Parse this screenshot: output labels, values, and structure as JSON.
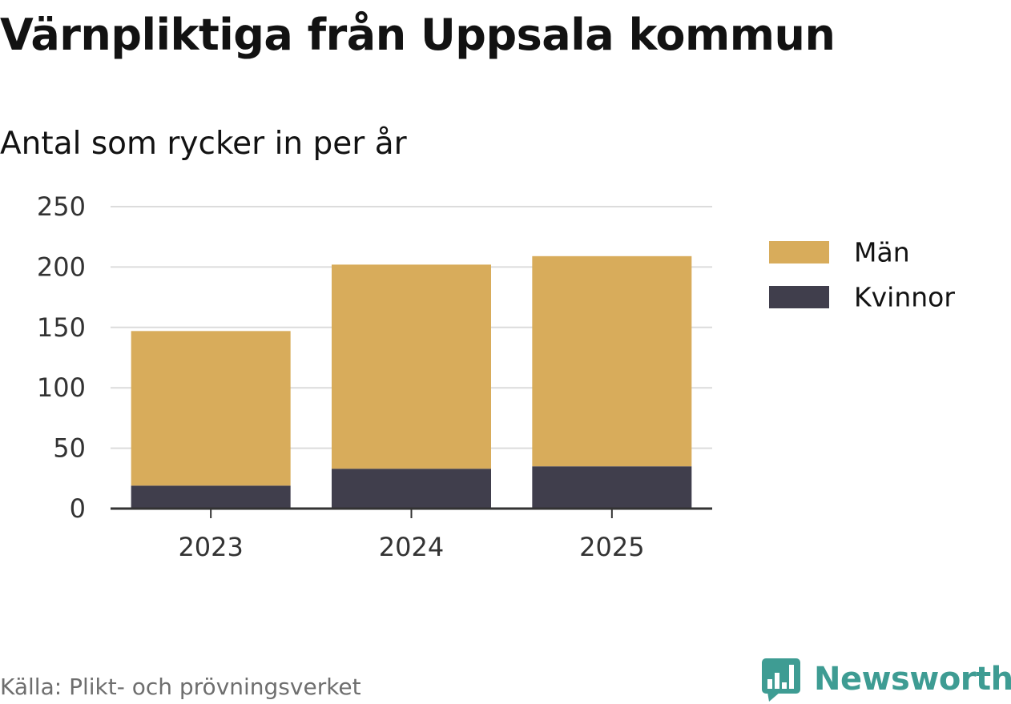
{
  "title": "Värnpliktiga från Uppsala kommun",
  "subtitle": "Antal som rycker in per år",
  "source": "Källa: Plikt- och prövningsverket",
  "brand": {
    "name": "Newsworthy",
    "color": "#3e9c93",
    "icon": "bar-chart-speech-bubble-icon"
  },
  "chart_data": {
    "type": "bar",
    "stacked": true,
    "categories": [
      "2023",
      "2024",
      "2025"
    ],
    "series": [
      {
        "name": "Kvinnor",
        "color": "#403e4c",
        "values": [
          19,
          33,
          35
        ]
      },
      {
        "name": "Män",
        "color": "#d8ac5b",
        "values": [
          128,
          169,
          174
        ]
      }
    ],
    "legend_order": [
      "Män",
      "Kvinnor"
    ],
    "ylim": [
      0,
      250
    ],
    "yticks": [
      0,
      50,
      100,
      150,
      200,
      250
    ],
    "grid": true,
    "legend_position": "right"
  }
}
